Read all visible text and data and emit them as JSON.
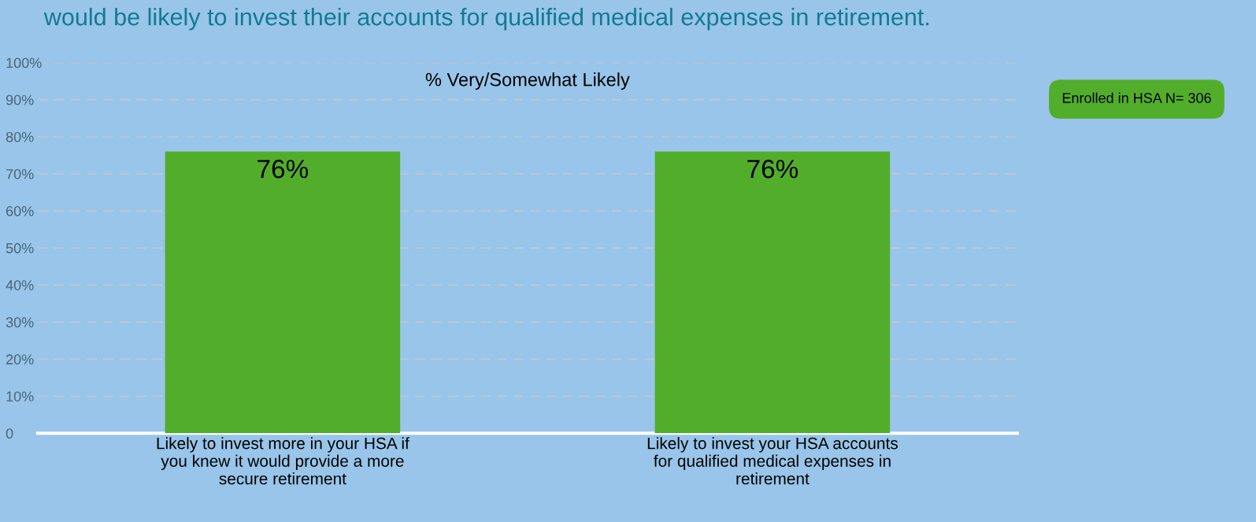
{
  "chart_data": {
    "type": "bar",
    "title": "would be likely to invest their accounts for qualified medical expenses in retirement.",
    "subtitle": "% Very/Somewhat Likely",
    "categories": [
      "Likely to invest more in your HSA if\nyou knew it would provide a more\nsecure retirement",
      "Likely to invest your HSA accounts\nfor qualified medical expenses in\nretirement"
    ],
    "values": [
      76,
      76
    ],
    "value_labels": [
      "76%",
      "76%"
    ],
    "color": "#52ad2b",
    "ylim": [
      0,
      100
    ],
    "yticks": [
      {
        "value": 0,
        "label": "0"
      },
      {
        "value": 10,
        "label": "10%"
      },
      {
        "value": 20,
        "label": "20%"
      },
      {
        "value": 30,
        "label": "30%"
      },
      {
        "value": 40,
        "label": "40%"
      },
      {
        "value": 50,
        "label": "50%"
      },
      {
        "value": 60,
        "label": "60%"
      },
      {
        "value": 70,
        "label": "70%"
      },
      {
        "value": 80,
        "label": "80%"
      },
      {
        "value": 90,
        "label": "90%"
      },
      {
        "value": 100,
        "label": "100%"
      }
    ],
    "grid": "y",
    "legend": false,
    "annotations": [
      "Enrolled in HSA N= 306"
    ]
  }
}
